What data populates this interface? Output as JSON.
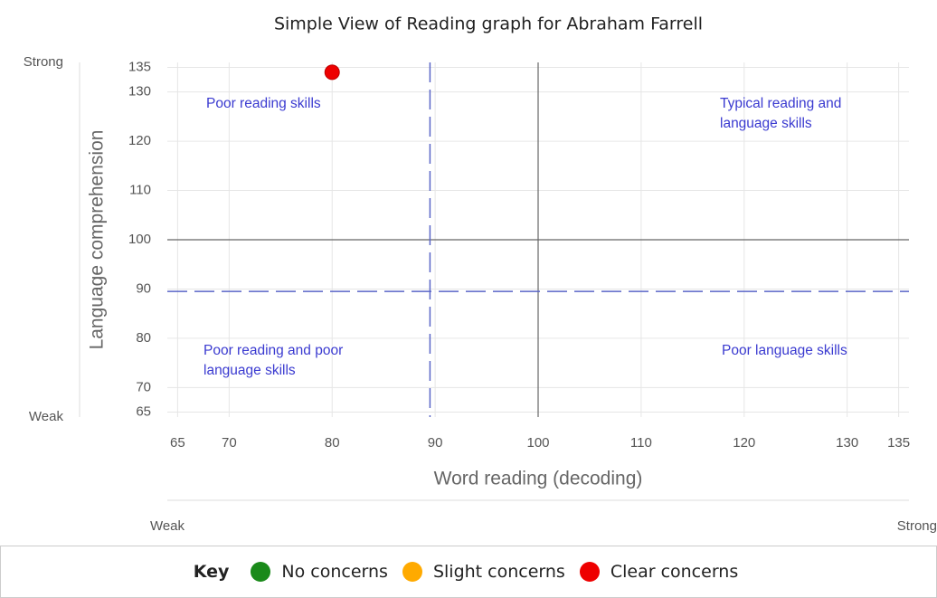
{
  "chart_data": {
    "type": "scatter",
    "title": "Simple View of Reading graph for Abraham Farrell",
    "xlabel": "Word reading (decoding)",
    "ylabel": "Language comprehension",
    "xlim": [
      64,
      136
    ],
    "ylim": [
      64,
      136
    ],
    "xticks": [
      65,
      70,
      80,
      90,
      100,
      110,
      120,
      130,
      135
    ],
    "yticks": [
      65,
      70,
      80,
      90,
      100,
      110,
      120,
      130,
      135
    ],
    "grid": true,
    "x_scale_labels": [
      "Weak",
      "Strong"
    ],
    "y_scale_labels": [
      "Weak",
      "Strong"
    ],
    "reference_lines": {
      "x_dashed": 89.5,
      "y_dashed": 89.5,
      "x_solid": 100,
      "y_solid": 100
    },
    "annotations": [
      "Poor reading skills",
      "Typical reading and language skills",
      "Poor reading and poor language skills",
      "Poor language skills"
    ],
    "legend_title": "Key",
    "series": [
      {
        "name": "No concerns",
        "color": "#1a8a1a",
        "x": [],
        "values": []
      },
      {
        "name": "Slight concerns",
        "color": "#ffaa00",
        "x": [],
        "values": []
      },
      {
        "name": "Clear concerns",
        "color": "#ee0000",
        "x": [
          80
        ],
        "values": [
          134
        ]
      }
    ]
  }
}
